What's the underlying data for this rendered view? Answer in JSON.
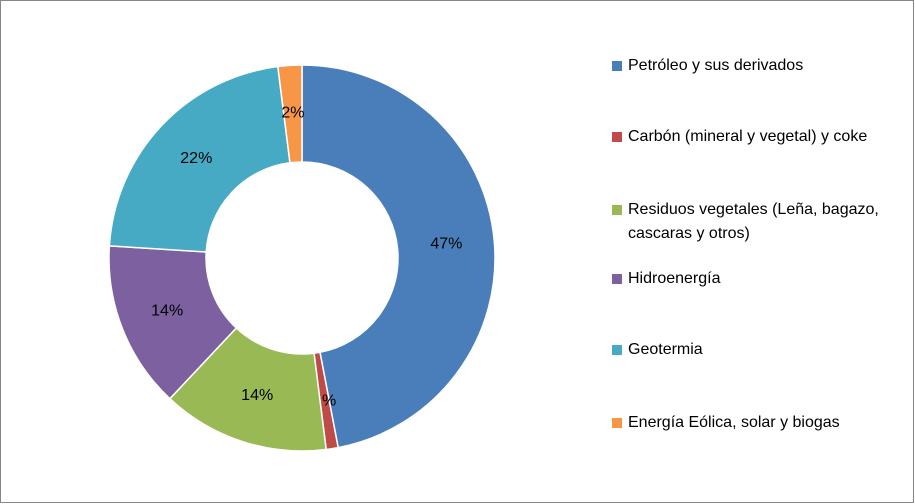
{
  "chart_data": {
    "type": "donut",
    "categories": [
      "Petróleo y sus derivados",
      "Carbón (mineral y vegetal) y coke",
      "Residuos vegetales (Leña, bagazo, cascaras y otros)",
      "Hidroenergía",
      "Geotermia",
      "Energía Eólica, solar y biogas"
    ],
    "values": [
      47,
      1,
      14,
      14,
      22,
      2
    ],
    "value_labels": [
      "47%",
      "1%",
      "14%",
      "14%",
      "22%",
      "2%"
    ],
    "colors": [
      "#4a7ebb",
      "#be4b48",
      "#98b954",
      "#7d60a0",
      "#46aac5",
      "#f79646"
    ],
    "legend": "right"
  }
}
